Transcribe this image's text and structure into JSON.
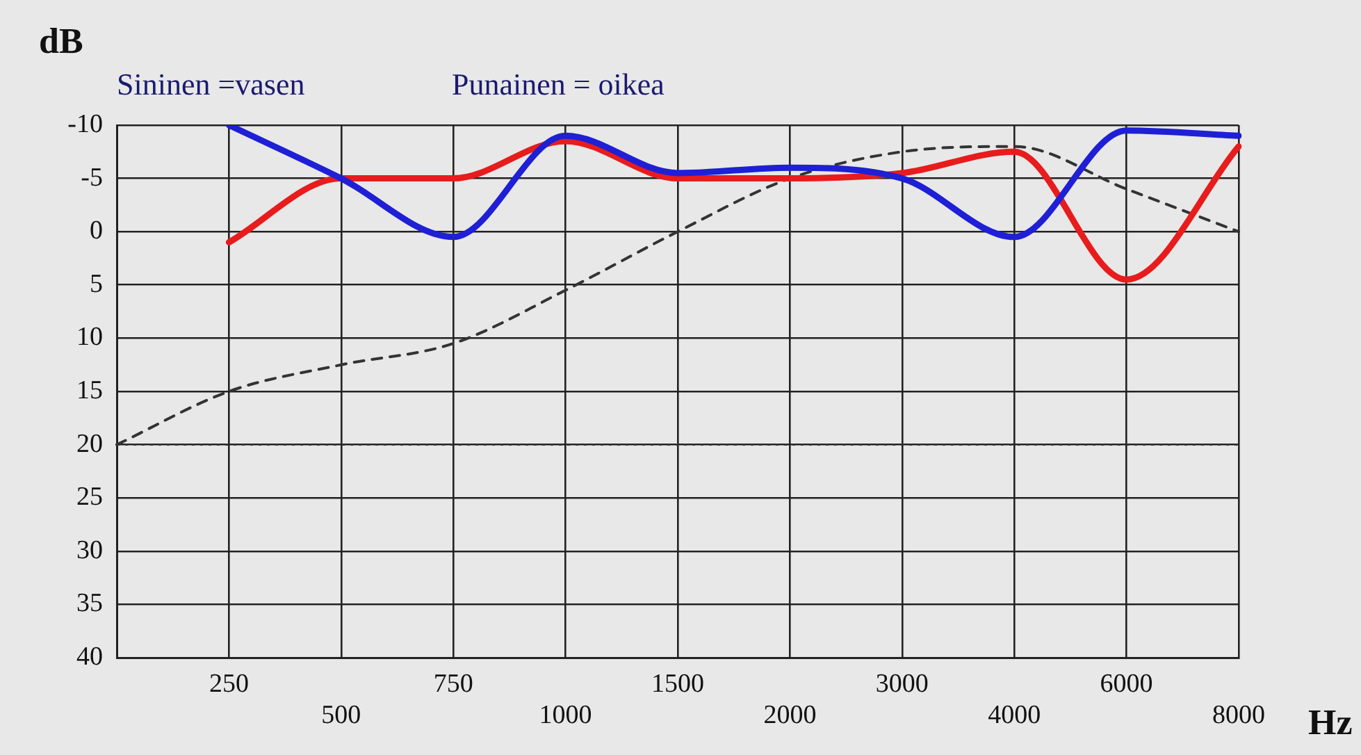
{
  "chart_data": {
    "type": "line",
    "xlabel": "Hz",
    "ylabel": "dB",
    "categories": [
      null,
      "250",
      "500",
      "750",
      "1000",
      "1500",
      "2000",
      "3000",
      "4000",
      "6000",
      "8000"
    ],
    "series": [
      {
        "color": "#1f1fd6",
        "values": [
          null,
          -10,
          -5,
          0.5,
          -9,
          -5.5,
          -6,
          -5,
          0.5,
          -9.5,
          -9
        ]
      },
      {
        "color": "#e81c1c",
        "values": [
          null,
          1,
          -5,
          -5,
          -8.5,
          -5,
          -5,
          -5.5,
          -7.5,
          4.5,
          -8
        ]
      },
      {
        "color": "#333333",
        "line_style": "dashed",
        "values": [
          20,
          15,
          12.5,
          10.5,
          5.5,
          0,
          -5,
          -7.5,
          -8,
          -4,
          0
        ]
      }
    ],
    "ylim": [
      40,
      -10
    ],
    "yticks": [
      -10,
      -5,
      0,
      5,
      10,
      15,
      20,
      25,
      30,
      35,
      40
    ],
    "ref_lines": [
      {
        "axis": "y",
        "value": 20,
        "color": "#333333",
        "line_style": "dotted"
      }
    ],
    "annotations": [
      "Sininen =vasen",
      "Punainen = oikea"
    ],
    "grid": true,
    "legend": false,
    "marker": "none"
  }
}
